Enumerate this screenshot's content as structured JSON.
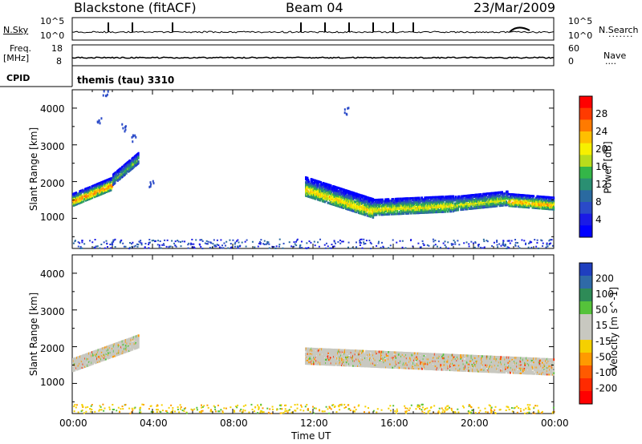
{
  "header": {
    "radar": "Blackstone (fitACF)",
    "beam": "Beam 04",
    "date": "23/Mar/2009"
  },
  "panels": {
    "nsky_label": "N.Sky",
    "nsky_ticks": [
      "10^5",
      "10^0"
    ],
    "nsearch_label": "N.Search",
    "nsearch_ticks": [
      "10^5",
      "10^0"
    ],
    "freq_label": "Freq.",
    "freq_unit": "[MHz]",
    "freq_ticks": [
      "18",
      "8"
    ],
    "nave_label": "Nave",
    "nave_ticks": [
      "60",
      "0"
    ],
    "cpid_label": "CPID",
    "cpid_value": "themis (tau) 3310"
  },
  "axes": {
    "ylabel": "Slant Range [km]",
    "yticks": [
      "4000",
      "3000",
      "2000",
      "1000"
    ],
    "xlabel": "Time UT",
    "xticks": [
      "00:00",
      "04:00",
      "08:00",
      "12:00",
      "16:00",
      "20:00",
      "00:00"
    ]
  },
  "colorbars": {
    "power": {
      "label": "Power [dB]",
      "ticks": [
        "28",
        "24",
        "20",
        "16",
        "12",
        "8",
        "4"
      ],
      "colors": [
        "#ff0000",
        "#ff3a00",
        "#ff7a00",
        "#ffbf00",
        "#f7f000",
        "#b8dc1c",
        "#34b648",
        "#2a8f72",
        "#2a6aa0",
        "#2a4ac8",
        "#1a1ae6",
        "#0000ff"
      ]
    },
    "velocity": {
      "label": "Velocity [m s^-1]",
      "ticks": [
        "200",
        "100",
        "50",
        "15",
        "-15",
        "-50",
        "-100",
        "-200"
      ],
      "colors": [
        "#1f3fbf",
        "#2f6aa7",
        "#2e8b57",
        "#55c23a",
        "#c8c8c0",
        "#c8c8c0",
        "#f5d000",
        "#ff9a00",
        "#ff5a00",
        "#ff2a00",
        "#ff0000"
      ]
    }
  },
  "chart_data": {
    "type": "heatmap",
    "title": "Blackstone (fitACF)",
    "xlabel": "Time UT",
    "ylabel": "Slant Range [km]",
    "xlim_hours": [
      0,
      24
    ],
    "ylim_km": [
      180,
      4500
    ],
    "series": [
      {
        "name": "Power [dB]",
        "clim": [
          0,
          30
        ],
        "segments": [
          {
            "t0": 0.0,
            "t1": 2.0,
            "range_center_start": 1550,
            "range_center_end": 2000,
            "width": 350,
            "peak": 26
          },
          {
            "t0": 2.0,
            "t1": 3.3,
            "range_center_start": 2100,
            "range_center_end": 2700,
            "width": 300,
            "peak": 14
          },
          {
            "t0": 11.6,
            "t1": 15.0,
            "range_center_start": 1900,
            "range_center_end": 1300,
            "width": 500,
            "peak": 22
          },
          {
            "t0": 15.0,
            "t1": 19.0,
            "range_center_start": 1350,
            "range_center_end": 1450,
            "width": 450,
            "peak": 20
          },
          {
            "t0": 19.0,
            "t1": 21.7,
            "range_center_start": 1450,
            "range_center_end": 1600,
            "width": 400,
            "peak": 18
          },
          {
            "t0": 21.7,
            "t1": 24.0,
            "range_center_start": 1550,
            "range_center_end": 1450,
            "width": 350,
            "peak": 24
          }
        ]
      },
      {
        "name": "Velocity [m s^-1]",
        "clim": [
          -200,
          200
        ],
        "segments": [
          {
            "t0": 0.0,
            "t1": 3.3,
            "range_center_start": 1550,
            "range_center_end": 2200,
            "width": 350,
            "typical": 0
          },
          {
            "t0": 11.6,
            "t1": 24.0,
            "range_center_start": 1800,
            "range_center_end": 1500,
            "width": 450,
            "typical": 0
          }
        ]
      }
    ]
  }
}
